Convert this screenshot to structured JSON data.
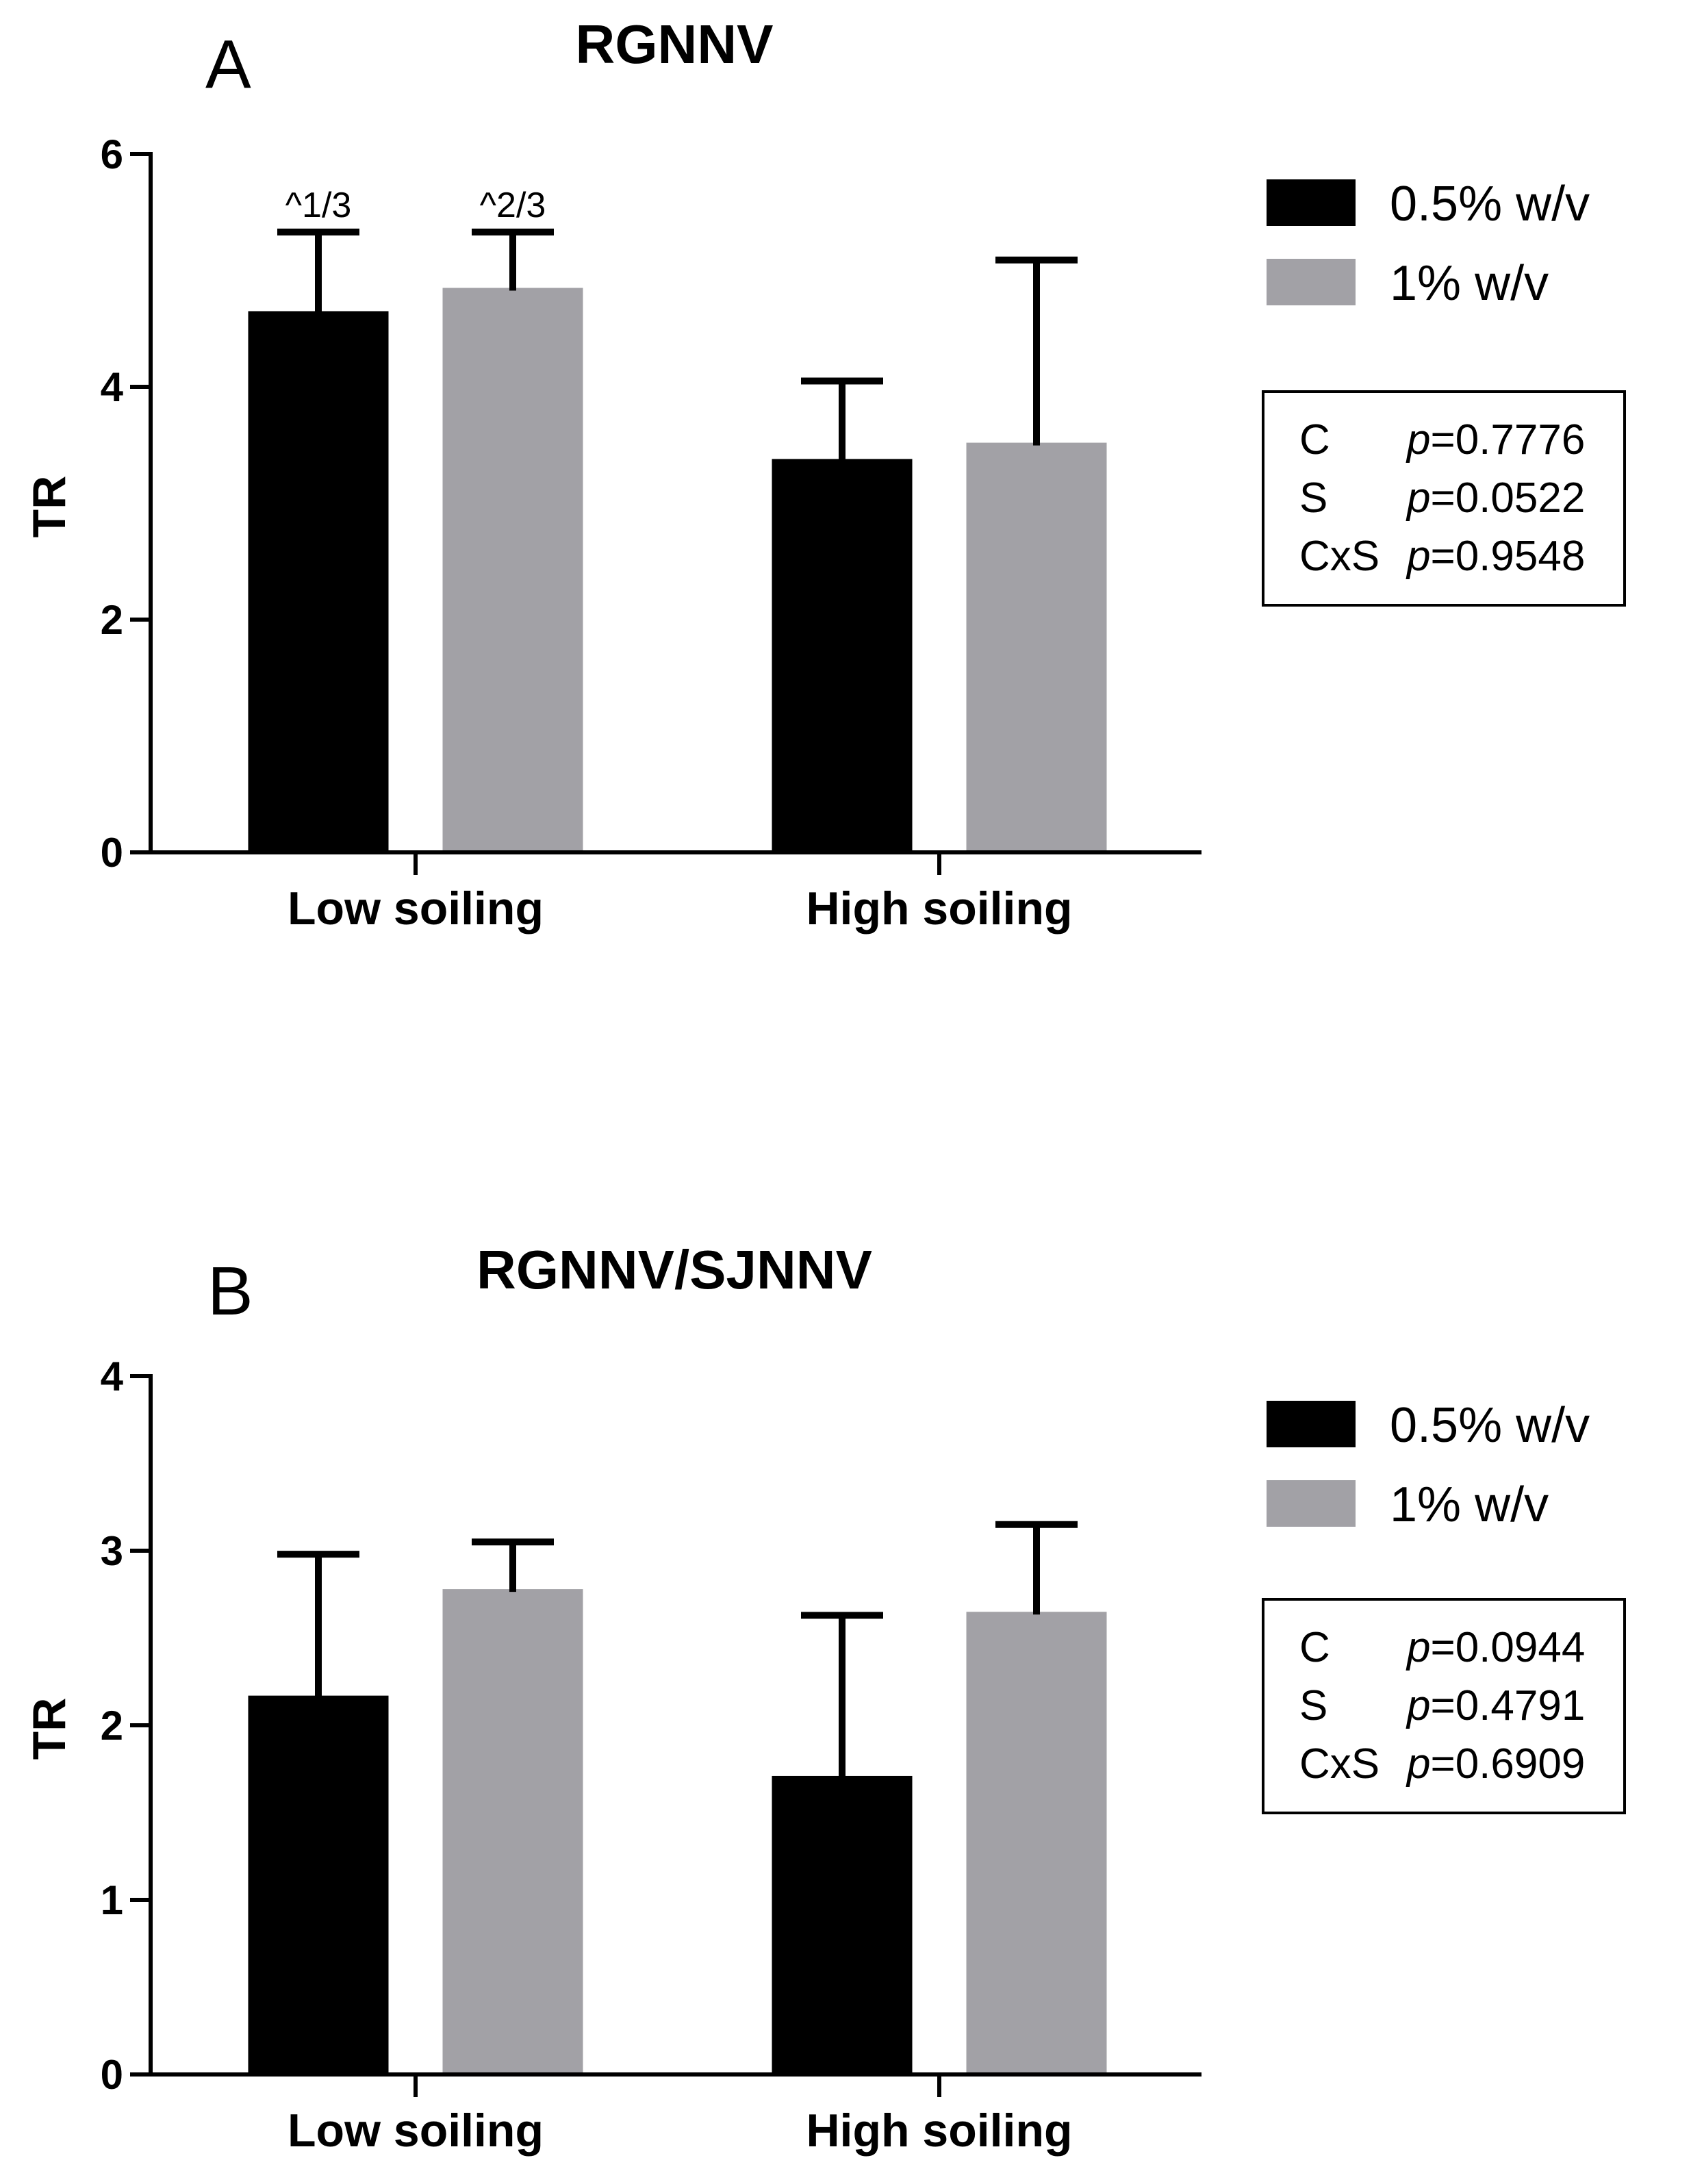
{
  "colors": {
    "series_0_5": "#000000",
    "series_1": "#a2a1a6",
    "background": "#ffffff"
  },
  "chart_data": [
    {
      "type": "bar",
      "panel_label": "A",
      "title": "RGNNV",
      "ylabel": "TR",
      "xlabel": "",
      "ylim": [
        0,
        6
      ],
      "yticks": [
        "0",
        "2",
        "4",
        "6"
      ],
      "categories": [
        "Low soiling",
        "High soiling"
      ],
      "series": [
        {
          "name": "0.5% w/v",
          "values": [
            4.65,
            3.38
          ],
          "errors": [
            0.68,
            0.67
          ],
          "annotations": [
            "^1/3",
            ""
          ]
        },
        {
          "name": "1% w/v",
          "values": [
            4.85,
            3.52
          ],
          "errors": [
            0.48,
            1.57
          ],
          "annotations": [
            "^2/3",
            ""
          ]
        }
      ],
      "stats": [
        {
          "label": "C",
          "p_symbol": "p",
          "p_value": "=0.7776"
        },
        {
          "label": "S",
          "p_symbol": "p",
          "p_value": "=0.0522"
        },
        {
          "label": "CxS",
          "p_symbol": "p",
          "p_value": "=0.9548"
        }
      ],
      "legend_position": "top-right"
    },
    {
      "type": "bar",
      "panel_label": "B",
      "title": "RGNNV/SJNNV",
      "ylabel": "TR",
      "xlabel": "",
      "ylim": [
        0,
        4
      ],
      "yticks": [
        "0",
        "1",
        "2",
        "3",
        "4"
      ],
      "categories": [
        "Low soiling",
        "High soiling"
      ],
      "series": [
        {
          "name": "0.5% w/v",
          "values": [
            2.17,
            1.71
          ],
          "errors": [
            0.81,
            0.92
          ],
          "annotations": [
            "",
            ""
          ]
        },
        {
          "name": "1% w/v",
          "values": [
            2.78,
            2.65
          ],
          "errors": [
            0.27,
            0.5
          ],
          "annotations": [
            "",
            ""
          ]
        }
      ],
      "stats": [
        {
          "label": "C",
          "p_symbol": "p",
          "p_value": "=0.0944"
        },
        {
          "label": "S",
          "p_symbol": "p",
          "p_value": "=0.4791"
        },
        {
          "label": "CxS",
          "p_symbol": "p",
          "p_value": "=0.6909"
        }
      ],
      "legend_position": "top-right"
    }
  ]
}
